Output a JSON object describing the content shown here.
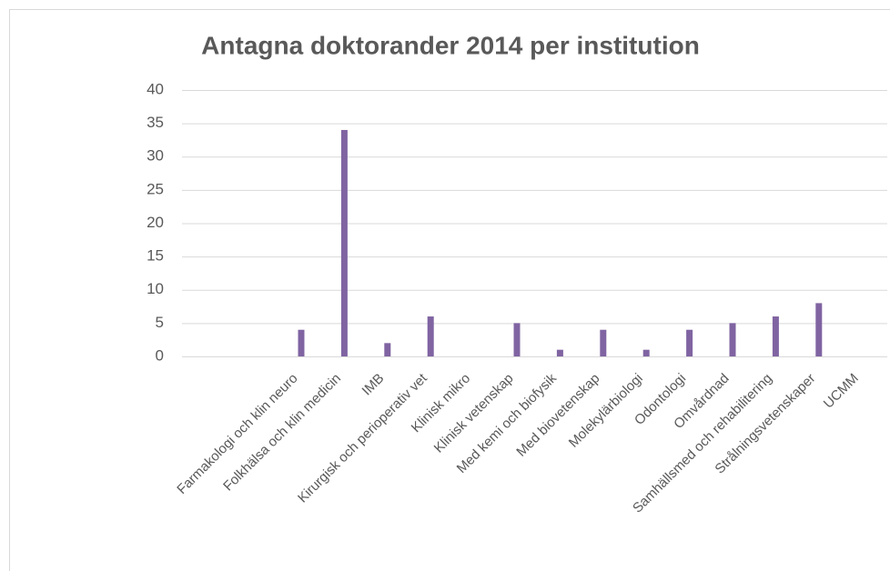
{
  "chart_data": {
    "type": "bar",
    "title": "Antagna doktorander 2014 per institution",
    "categories": [
      "Farmakologi och klin neuro",
      "Folkhälsa och klin medicin",
      "IMB",
      "Kirurgisk och perioperativ vet",
      "Klinisk mikro",
      "Klinisk vetenskap",
      "Med kemi och biofysik",
      "Med biovetenskap",
      "Molekylärbiologi",
      "Odontologi",
      "Omvårdnad",
      "Samhällsmed och rehabilitering",
      "Strålningsvetenskaper",
      "UCMM"
    ],
    "values": [
      4,
      34,
      2,
      6,
      0,
      5,
      1,
      4,
      1,
      4,
      5,
      6,
      8,
      0
    ],
    "color": "#8064a2",
    "ylim": [
      0,
      40
    ],
    "yticks": [
      0,
      5,
      10,
      15,
      20,
      25,
      30,
      35,
      40
    ],
    "grid": true
  }
}
